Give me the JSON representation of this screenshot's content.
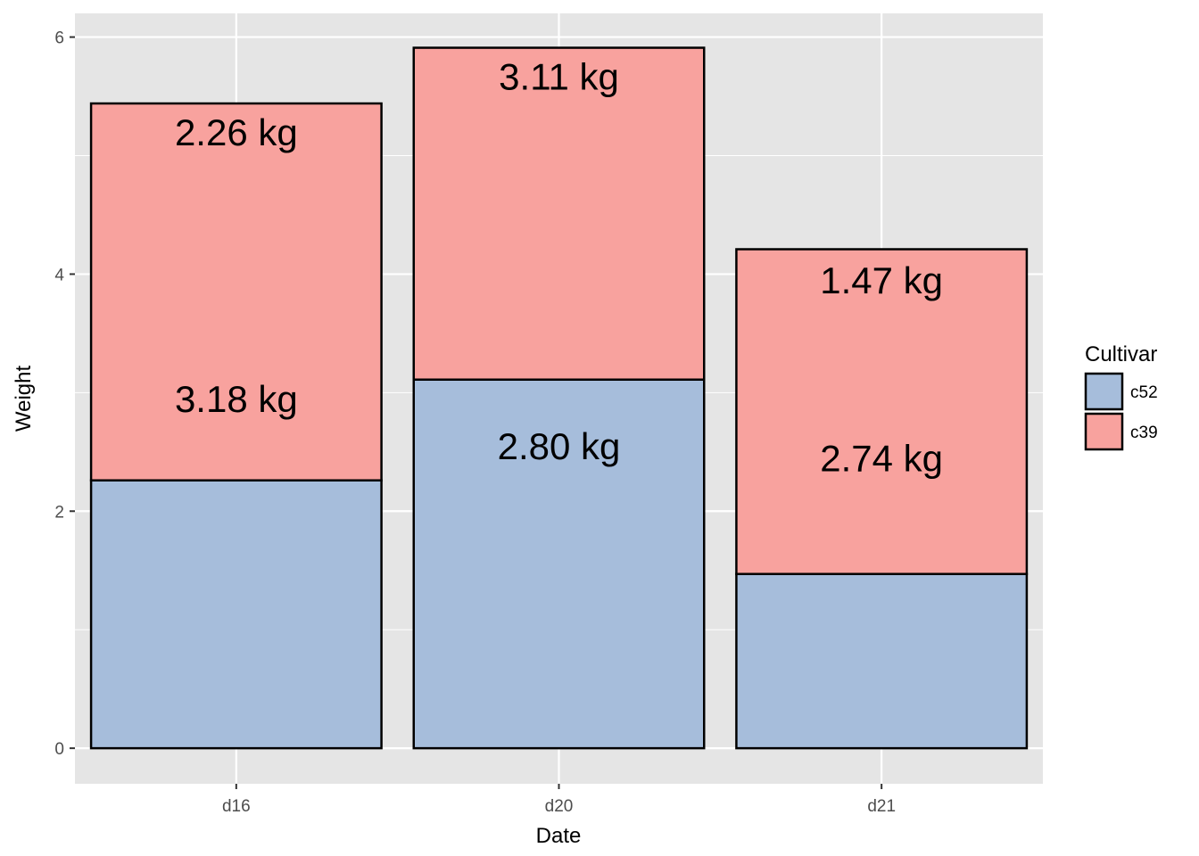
{
  "chart_data": {
    "type": "bar",
    "stacked": true,
    "title": "",
    "xlabel": "Date",
    "ylabel": "Weight",
    "categories": [
      "d16",
      "d20",
      "d21"
    ],
    "ylim": [
      -0.3,
      6.2
    ],
    "yticks": [
      0,
      2,
      4,
      6
    ],
    "grid": true,
    "legend_position": "right",
    "legend": {
      "title": "Cultivar",
      "entries": [
        {
          "label": "c52",
          "color": "#a6bddb"
        },
        {
          "label": "c39",
          "color": "#f8a29e"
        }
      ]
    },
    "series": [
      {
        "name": "c52",
        "color": "#a6bddb",
        "values": [
          2.26,
          3.11,
          1.47
        ]
      },
      {
        "name": "c39",
        "color": "#f8a29e",
        "values": [
          3.18,
          2.8,
          2.74
        ]
      }
    ],
    "labels": [
      {
        "category": "d16",
        "text": "2.26 kg",
        "y": 5.2
      },
      {
        "category": "d16",
        "text": "3.18 kg",
        "y": 2.95
      },
      {
        "category": "d20",
        "text": "3.11 kg",
        "y": 5.67
      },
      {
        "category": "d20",
        "text": "2.80 kg",
        "y": 2.55
      },
      {
        "category": "d21",
        "text": "1.47 kg",
        "y": 3.95
      },
      {
        "category": "d21",
        "text": "2.74 kg",
        "y": 2.45
      }
    ],
    "colors": {
      "panel_background": "#e5e5e5",
      "grid_major": "#ffffff",
      "bar_outline": "#000000"
    }
  }
}
